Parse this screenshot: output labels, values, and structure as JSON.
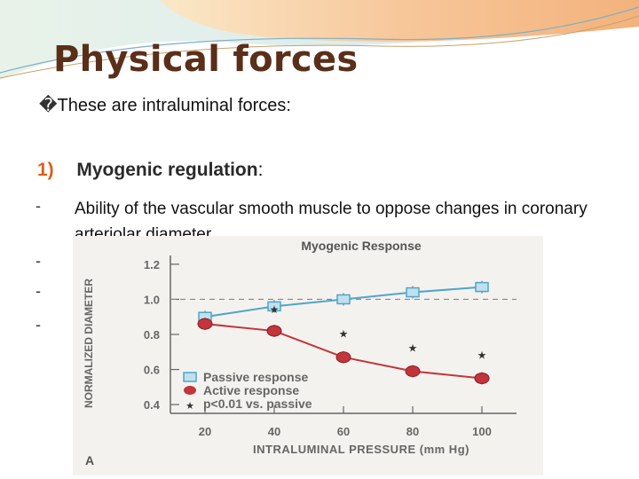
{
  "slide": {
    "title": "Physical forces",
    "intro_bullet": "�",
    "intro_text": "These are intraluminal forces:",
    "item_number": "1)",
    "item_heading": "Myogenic regulation",
    "item_colon": ":",
    "dash": "-",
    "paragraph": "Ability of the vascular smooth muscle to oppose changes in coronary arteriolar diameter",
    "extra_dashes": [
      "-",
      "-",
      "-"
    ]
  },
  "colors": {
    "title": "#5a2f1a",
    "accent": "#d9601a",
    "passive": "#4fa6c8",
    "active": "#c2353a"
  },
  "chart_data": {
    "type": "line",
    "title": "Myogenic Response",
    "xlabel": "INTRALUMINAL PRESSURE (mm Hg)",
    "ylabel": "NORMALIZED DIAMETER",
    "panel_label": "A",
    "x": [
      20,
      40,
      60,
      80,
      100
    ],
    "xlim": [
      10,
      110
    ],
    "ylim": [
      0.35,
      1.25
    ],
    "yticks": [
      "1.2",
      "1.0",
      "0.8",
      "0.6",
      "0.4"
    ],
    "xticks": [
      "20",
      "40",
      "60",
      "80",
      "100"
    ],
    "reference_line": 1.0,
    "series": [
      {
        "name": "Passive response",
        "values": [
          0.9,
          0.96,
          1.0,
          1.04,
          1.07
        ]
      },
      {
        "name": "Active response",
        "values": [
          0.86,
          0.82,
          0.67,
          0.59,
          0.55
        ]
      }
    ],
    "significance_label": "p<0.01 vs. passive",
    "significance_marker": "★",
    "significant_x": [
      40,
      60,
      80,
      100
    ],
    "legend_position": "bottom-right",
    "grid": false
  }
}
